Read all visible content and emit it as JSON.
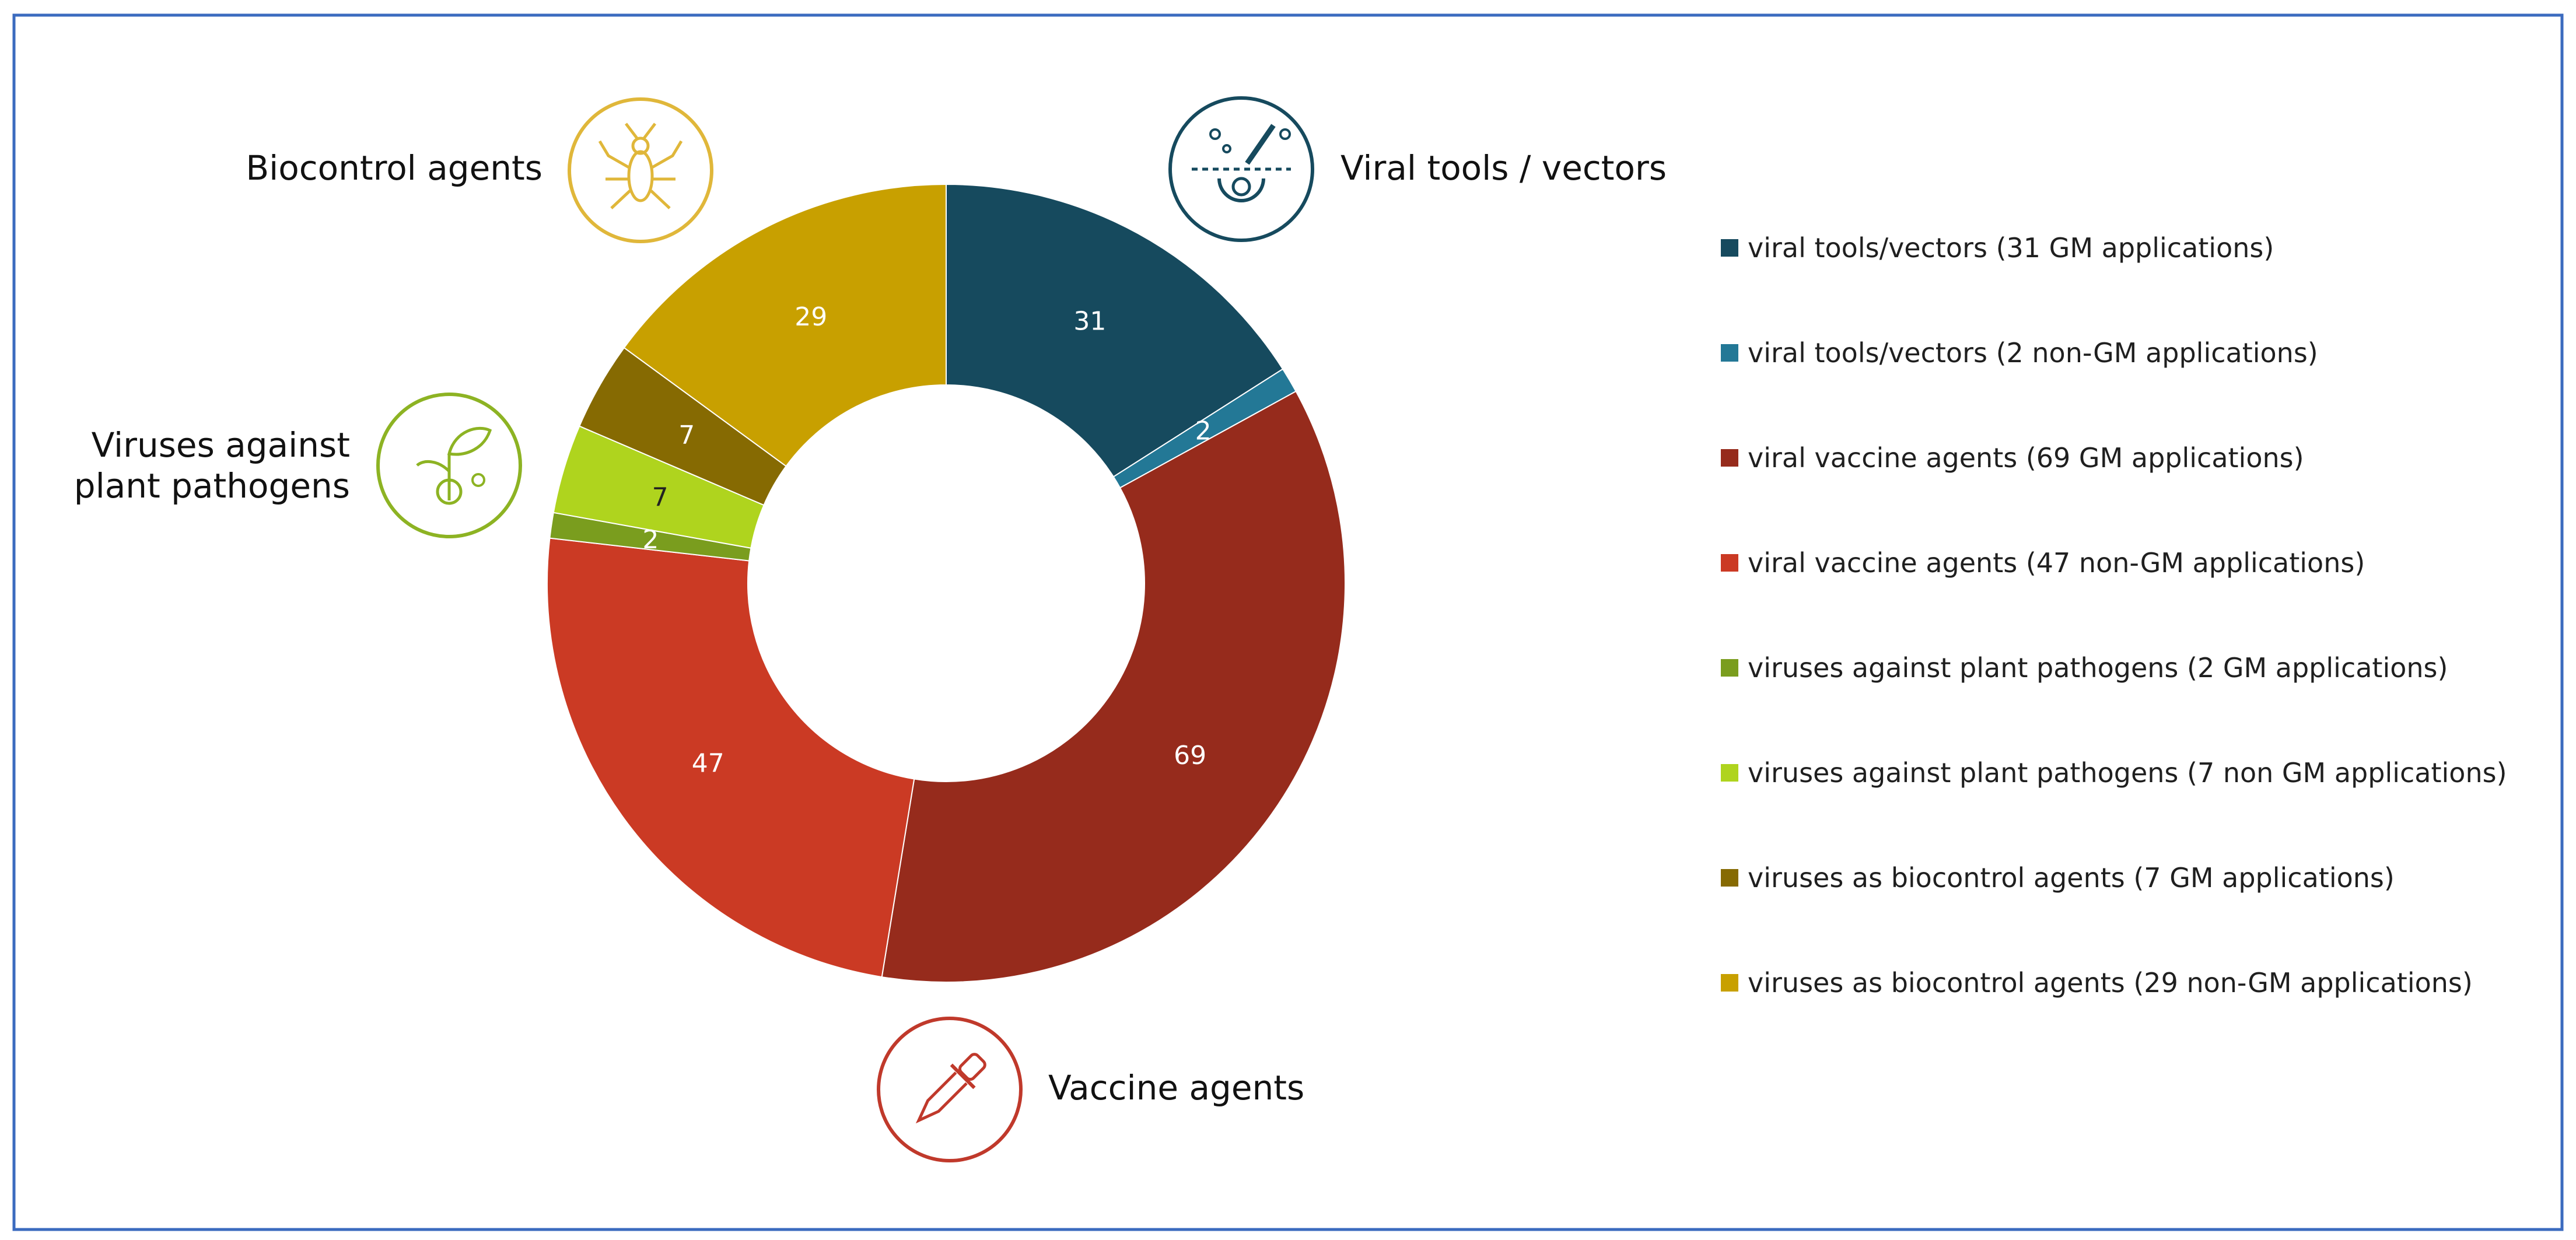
{
  "chart_data": {
    "type": "pie",
    "donut": true,
    "slices": [
      {
        "label": "viral tools/vectors (31 GM applications)",
        "value": 31,
        "color": "#164a5e",
        "label_color": "#ffffff"
      },
      {
        "label": "viral tools/vectors (2 non-GM applications)",
        "value": 2,
        "color": "#237896",
        "label_color": "#ffffff"
      },
      {
        "label": "viral vaccine agents (69 GM applications)",
        "value": 69,
        "color": "#962b1c",
        "label_color": "#ffffff"
      },
      {
        "label": "viral vaccine agents (47 non-GM applications)",
        "value": 47,
        "color": "#cb3a24",
        "label_color": "#ffffff"
      },
      {
        "label": "viruses against plant pathogens (2 GM applications)",
        "value": 2,
        "color": "#7a9d1e",
        "label_color": "#ffffff"
      },
      {
        "label": "viruses against plant pathogens (7 non GM applications)",
        "value": 7,
        "color": "#afd41e",
        "label_color": "#222222"
      },
      {
        "label": "viruses as biocontrol agents (7 GM applications)",
        "value": 7,
        "color": "#866a02",
        "label_color": "#ffffff"
      },
      {
        "label": "viruses as biocontrol agents (29 non-GM applications)",
        "value": 29,
        "color": "#c8a000",
        "label_color": "#ffffff"
      }
    ],
    "legend_position": "right"
  },
  "categories": {
    "viral_tools": {
      "label": "Viral tools / vectors",
      "icon": "gear-pen-icon",
      "color": "#164a5e"
    },
    "vaccine": {
      "label": "Vaccine agents",
      "icon": "dropper-icon",
      "color": "#c0392b"
    },
    "plant": {
      "label": "Viruses against plant pathogens",
      "line1": "Viruses against",
      "line2": "plant pathogens",
      "icon": "sprout-icon",
      "color": "#8db323"
    },
    "biocontrol": {
      "label": "Biocontrol agents",
      "icon": "bug-icon",
      "color": "#e0b73a"
    }
  },
  "frame_color": "#3b6bbf"
}
